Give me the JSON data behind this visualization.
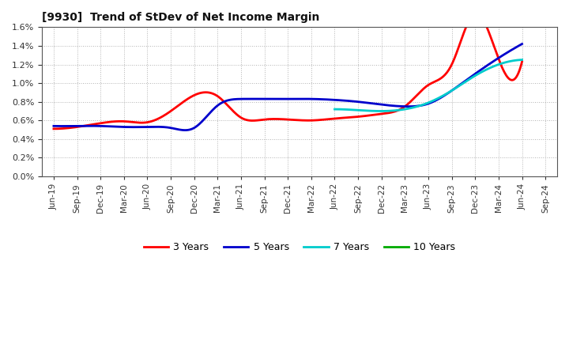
{
  "title": "[9930]  Trend of StDev of Net Income Margin",
  "background_color": "#ffffff",
  "plot_background": "#ffffff",
  "grid_color": "#aaaaaa",
  "x_labels": [
    "Jun-19",
    "Sep-19",
    "Dec-19",
    "Mar-20",
    "Jun-20",
    "Sep-20",
    "Dec-20",
    "Mar-21",
    "Jun-21",
    "Sep-21",
    "Dec-21",
    "Mar-22",
    "Jun-22",
    "Sep-22",
    "Dec-22",
    "Mar-23",
    "Jun-23",
    "Sep-23",
    "Dec-23",
    "Mar-24",
    "Jun-24",
    "Sep-24"
  ],
  "y_min": 0.0,
  "y_max": 0.016,
  "y_ticks": [
    0.0,
    0.002,
    0.004,
    0.006,
    0.008,
    0.01,
    0.012,
    0.014,
    0.016
  ],
  "series_3y_x": [
    0,
    1,
    2,
    3,
    4,
    5,
    6,
    7,
    8,
    9,
    10,
    11,
    12,
    13,
    14,
    15,
    16,
    17,
    18,
    19,
    20
  ],
  "series_3y_y": [
    0.0051,
    0.0053,
    0.0057,
    0.0059,
    0.0058,
    0.007,
    0.0087,
    0.0086,
    0.0063,
    0.0061,
    0.0061,
    0.006,
    0.0062,
    0.0064,
    0.0067,
    0.0075,
    0.0098,
    0.012,
    0.0175,
    0.0126,
    0.0123
  ],
  "series_5y_x": [
    0,
    1,
    2,
    3,
    4,
    5,
    6,
    7,
    8,
    9,
    10,
    11,
    12,
    13,
    14,
    15,
    16,
    17,
    18,
    19,
    20
  ],
  "series_5y_y": [
    0.0054,
    0.0054,
    0.0054,
    0.0053,
    0.0053,
    0.0052,
    0.0052,
    0.0076,
    0.0083,
    0.0083,
    0.0083,
    0.0083,
    0.0082,
    0.008,
    0.0077,
    0.0075,
    0.0078,
    0.0092,
    0.011,
    0.0127,
    0.0142
  ],
  "series_7y_x": [
    12,
    13,
    14,
    15,
    16,
    17,
    18,
    19,
    20
  ],
  "series_7y_y": [
    0.0072,
    0.0071,
    0.007,
    0.0072,
    0.0079,
    0.0092,
    0.0108,
    0.012,
    0.0125
  ],
  "color_3y": "#ff0000",
  "color_5y": "#0000cc",
  "color_7y": "#00cccc",
  "color_10y": "#00aa00",
  "legend_entries": [
    "3 Years",
    "5 Years",
    "7 Years",
    "10 Years"
  ]
}
